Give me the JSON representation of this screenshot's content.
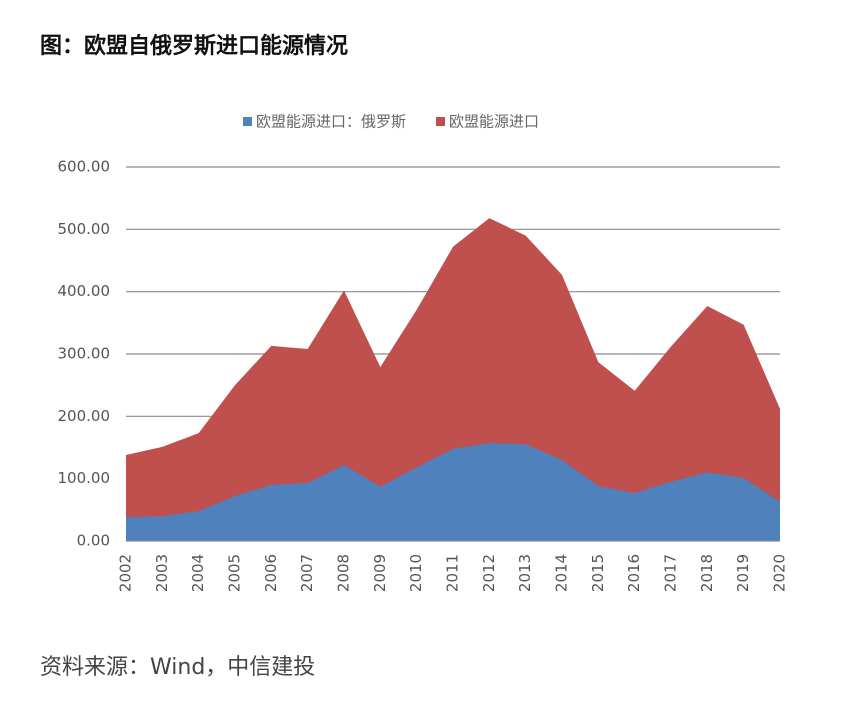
{
  "title": "图：欧盟自俄罗斯进口能源情况",
  "source": "资料来源：Wind，中信建投",
  "chart_data": {
    "type": "area",
    "categories": [
      "2002",
      "2003",
      "2004",
      "2005",
      "2006",
      "2007",
      "2008",
      "2009",
      "2010",
      "2011",
      "2012",
      "2013",
      "2014",
      "2015",
      "2016",
      "2017",
      "2018",
      "2019",
      "2020"
    ],
    "series": [
      {
        "name": "欧盟能源进口：俄罗斯",
        "color": "#4f81bd",
        "values": [
          38,
          40,
          48,
          72,
          90,
          93,
          122,
          87,
          118,
          148,
          157,
          155,
          130,
          88,
          77,
          95,
          110,
          101,
          63
        ]
      },
      {
        "name": "欧盟能源进口",
        "color": "#c0504d",
        "values": [
          138,
          151,
          173,
          250,
          313,
          308,
          402,
          279,
          371,
          472,
          518,
          490,
          427,
          287,
          241,
          312,
          377,
          347,
          212
        ]
      }
    ],
    "ylim": [
      0,
      600
    ],
    "yticks": [
      {
        "value": 0,
        "label": "0.00"
      },
      {
        "value": 100,
        "label": "100.00"
      },
      {
        "value": 200,
        "label": "200.00"
      },
      {
        "value": 300,
        "label": "300.00"
      },
      {
        "value": 400,
        "label": "400.00"
      },
      {
        "value": 500,
        "label": "500.00"
      },
      {
        "value": 600,
        "label": "600.00"
      }
    ],
    "grid": true,
    "legend": "top"
  }
}
